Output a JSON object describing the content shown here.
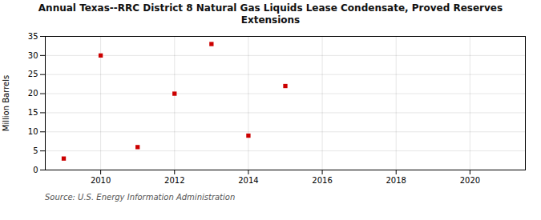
{
  "chart_data": {
    "type": "scatter",
    "title": "Annual Texas--RRC District 8 Natural Gas Liquids Lease Condensate, Proved Reserves\nExtensions",
    "ylabel": "Million Barrels",
    "source": "Source: U.S. Energy Information Administration",
    "x": [
      2009,
      2010,
      2011,
      2012,
      2013,
      2014,
      2015
    ],
    "values": [
      3.0,
      30.0,
      6.0,
      20.0,
      33.0,
      9.0,
      22.0
    ],
    "color": "#cc0000",
    "marker": "square",
    "xlim": [
      2008.5,
      2021.5
    ],
    "ylim": [
      0,
      35
    ],
    "xticks": [
      2010,
      2012,
      2014,
      2016,
      2018,
      2020
    ],
    "yticks": [
      0,
      5,
      10,
      15,
      20,
      25,
      30,
      35
    ],
    "grid": true
  }
}
